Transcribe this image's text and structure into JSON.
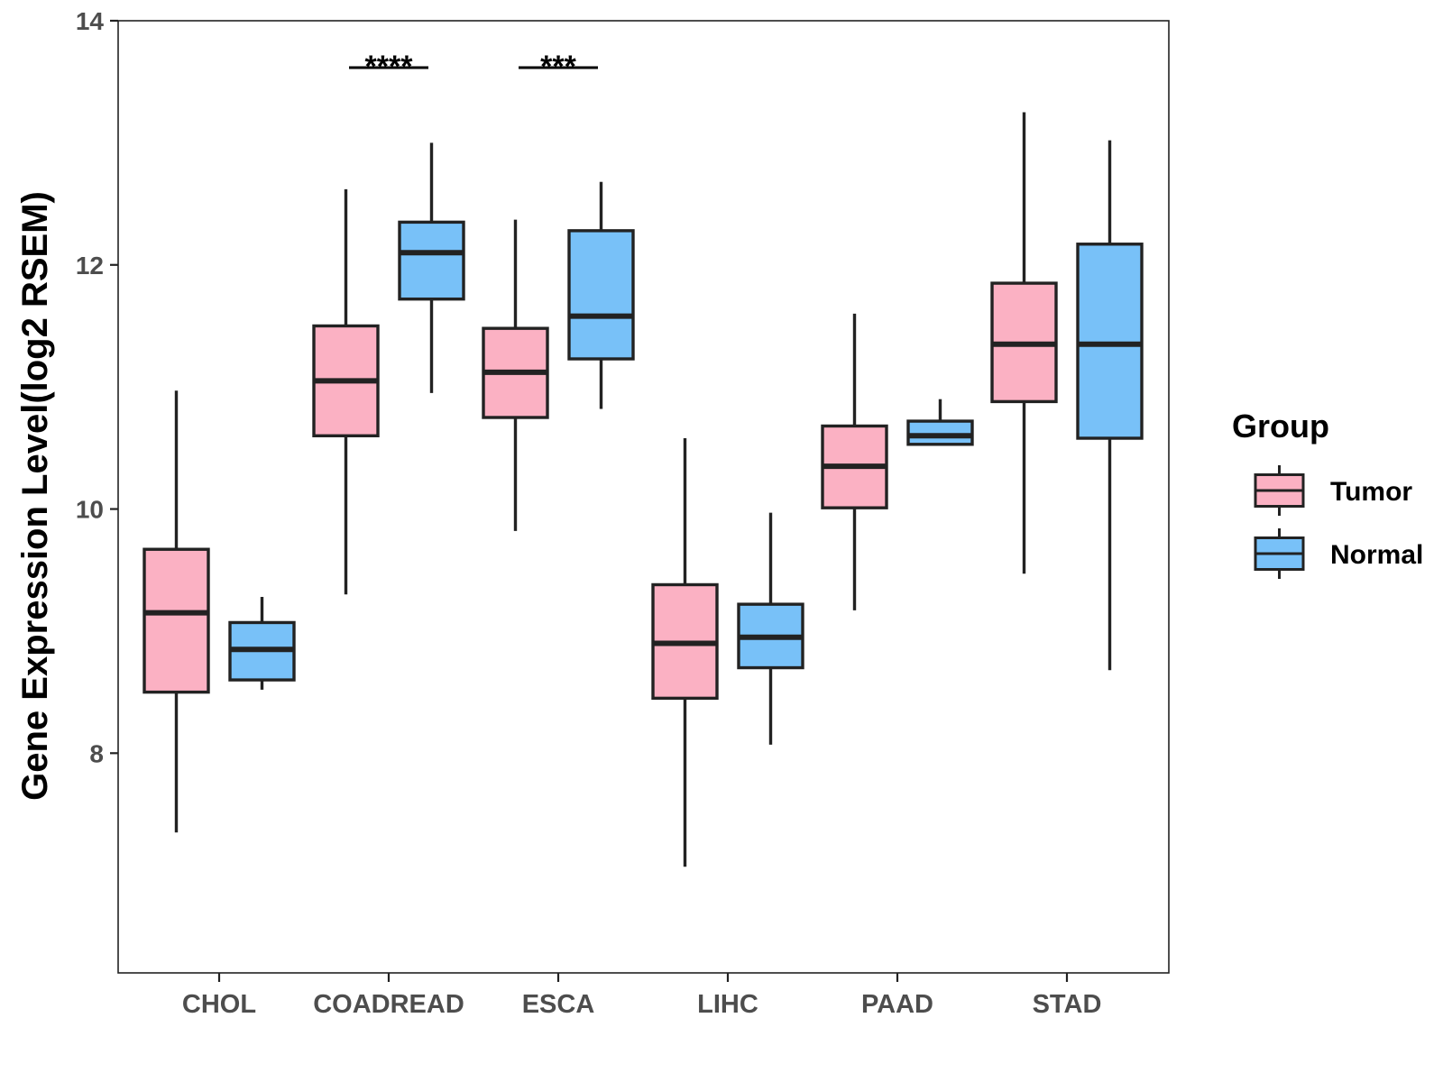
{
  "chart_data": {
    "type": "box",
    "title": "",
    "xlabel": "",
    "ylabel": "Gene Expression Level(log2 RSEM)",
    "ylim": [
      6.2,
      14
    ],
    "yticks": [
      8,
      10,
      12,
      14
    ],
    "categories": [
      "CHOL",
      "COADREAD",
      "ESCA",
      "LIHC",
      "PAAD",
      "STAD"
    ],
    "legend": {
      "title": "Group",
      "position": "right",
      "entries": [
        "Tumor",
        "Normal"
      ]
    },
    "colors": {
      "Tumor": "#FBB1C3",
      "Normal": "#78C1F8",
      "outline": "#222222"
    },
    "series": [
      {
        "name": "Tumor",
        "boxes": [
          {
            "category": "CHOL",
            "whisker_low": 7.35,
            "q1": 8.5,
            "median": 9.15,
            "q3": 9.67,
            "whisker_high": 10.97
          },
          {
            "category": "COADREAD",
            "whisker_low": 9.3,
            "q1": 10.6,
            "median": 11.05,
            "q3": 11.5,
            "whisker_high": 12.62
          },
          {
            "category": "ESCA",
            "whisker_low": 9.82,
            "q1": 10.75,
            "median": 11.12,
            "q3": 11.48,
            "whisker_high": 12.37
          },
          {
            "category": "LIHC",
            "whisker_low": 7.07,
            "q1": 8.45,
            "median": 8.9,
            "q3": 9.38,
            "whisker_high": 10.58
          },
          {
            "category": "PAAD",
            "whisker_low": 9.17,
            "q1": 10.01,
            "median": 10.35,
            "q3": 10.68,
            "whisker_high": 11.6
          },
          {
            "category": "STAD",
            "whisker_low": 9.47,
            "q1": 10.88,
            "median": 11.35,
            "q3": 11.85,
            "whisker_high": 13.25
          }
        ]
      },
      {
        "name": "Normal",
        "boxes": [
          {
            "category": "CHOL",
            "whisker_low": 8.52,
            "q1": 8.6,
            "median": 8.85,
            "q3": 9.07,
            "whisker_high": 9.28
          },
          {
            "category": "COADREAD",
            "whisker_low": 10.95,
            "q1": 11.72,
            "median": 12.1,
            "q3": 12.35,
            "whisker_high": 13.0
          },
          {
            "category": "ESCA",
            "whisker_low": 10.82,
            "q1": 11.23,
            "median": 11.58,
            "q3": 12.28,
            "whisker_high": 12.68
          },
          {
            "category": "LIHC",
            "whisker_low": 8.07,
            "q1": 8.7,
            "median": 8.95,
            "q3": 9.22,
            "whisker_high": 9.97
          },
          {
            "category": "PAAD",
            "whisker_low": 10.53,
            "q1": 10.53,
            "median": 10.6,
            "q3": 10.72,
            "whisker_high": 10.9
          },
          {
            "category": "STAD",
            "whisker_low": 8.68,
            "q1": 10.58,
            "median": 11.35,
            "q3": 12.17,
            "whisker_high": 13.02
          }
        ]
      }
    ],
    "annotations": [
      {
        "category": "COADREAD",
        "label": "****"
      },
      {
        "category": "ESCA",
        "label": "***"
      }
    ]
  }
}
